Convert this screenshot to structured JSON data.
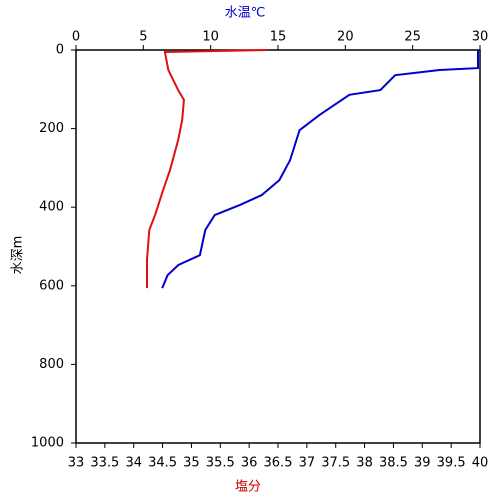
{
  "chart_data": {
    "type": "profile",
    "x_label": "塩分",
    "x_label_color": "#cc0000",
    "x2_label": "水温℃",
    "x2_label_color": "#0000cc",
    "y_label": "水深m",
    "xlim": [
      33,
      40
    ],
    "xticks": [
      33,
      33.5,
      34,
      34.5,
      35,
      35.5,
      36,
      36.5,
      37,
      37.5,
      38,
      38.5,
      39,
      39.5,
      40
    ],
    "x2lim": [
      0,
      30
    ],
    "x2ticks": [
      0,
      5,
      10,
      15,
      20,
      25,
      30
    ],
    "ylim": [
      0,
      1000
    ],
    "yticks": [
      0,
      200,
      400,
      600,
      800,
      1000
    ],
    "y_inverted": true,
    "series": [
      {
        "color": "#dd1111",
        "axis": "x",
        "y": [
          0,
          5,
          51,
          102,
          127,
          178,
          229,
          305,
          356,
          420,
          458,
          534,
          606
        ],
        "values": [
          36.33,
          34.54,
          34.6,
          34.77,
          34.87,
          34.84,
          34.77,
          34.63,
          34.51,
          34.37,
          34.27,
          34.23,
          34.23
        ]
      },
      {
        "color": "#0000cc",
        "axis": "x2",
        "y": [
          0,
          46,
          51,
          64,
          102,
          114,
          165,
          204,
          280,
          331,
          369,
          394,
          420,
          458,
          522,
          547,
          573,
          606
        ],
        "values": [
          29.85,
          29.85,
          27.0,
          23.7,
          22.6,
          20.3,
          18.1,
          16.6,
          15.9,
          15.1,
          13.8,
          12.2,
          10.3,
          9.6,
          9.2,
          7.6,
          6.8,
          6.4
        ]
      }
    ]
  }
}
